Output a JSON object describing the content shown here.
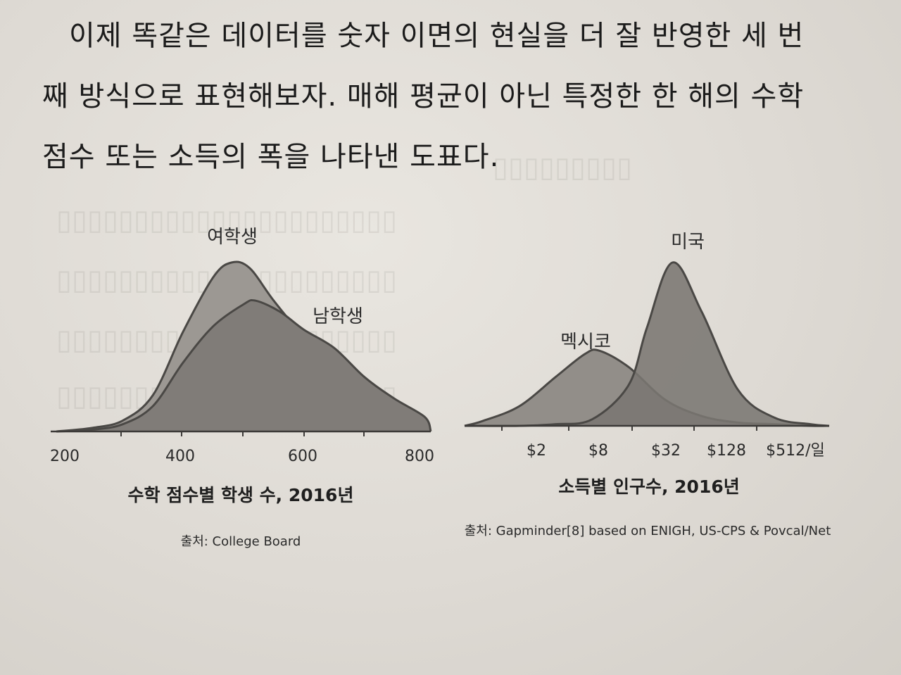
{
  "paragraph": {
    "line1": "이제 똑같은 데이터를 숫자 이면의 현실을 더 잘 반영한 세 번",
    "line2": "째 방식으로 표현해보자. 매해 평균이 아닌 특정한 한 해의 수학",
    "line3": "점수 또는 소득의 폭을 나타낸 도표다."
  },
  "chart_data": [
    {
      "type": "area",
      "series": [
        {
          "name": "여학생",
          "x": [
            190,
            250,
            300,
            350,
            400,
            450,
            480,
            510,
            550,
            600,
            650,
            700,
            750,
            800,
            810
          ],
          "values": [
            0,
            2,
            6,
            20,
            55,
            85,
            93,
            90,
            72,
            52,
            35,
            22,
            12,
            6,
            0
          ]
        },
        {
          "name": "남학생",
          "x": [
            190,
            250,
            300,
            350,
            400,
            450,
            500,
            520,
            560,
            600,
            650,
            700,
            750,
            800,
            810
          ],
          "values": [
            0,
            1,
            4,
            14,
            38,
            58,
            70,
            72,
            66,
            56,
            46,
            30,
            18,
            8,
            0
          ]
        }
      ],
      "xticks": [
        "200",
        "400",
        "600",
        "800"
      ],
      "title": "수학 점수별 학생 수, 2016년",
      "source": "출처: College Board"
    },
    {
      "type": "area",
      "series": [
        {
          "name": "멕시코",
          "x": [
            -0.5,
            0,
            1,
            2,
            2.8,
            3.2,
            4,
            5,
            6,
            7,
            8,
            9,
            9.5
          ],
          "values": [
            0,
            3,
            12,
            30,
            44,
            46,
            36,
            16,
            6,
            2,
            1,
            0,
            0
          ]
        },
        {
          "name": "미국",
          "x": [
            -0.5,
            1,
            2,
            3,
            4,
            4.5,
            5.2,
            6,
            7,
            8,
            9,
            9.5
          ],
          "values": [
            0,
            0,
            1,
            4,
            25,
            60,
            100,
            70,
            22,
            5,
            1,
            0
          ]
        }
      ],
      "xticks": [
        "$2",
        "$8",
        "$32",
        "$128",
        "$512/일"
      ],
      "title": "소득별 인구수, 2016년",
      "source": "출처: Gapminder[8] based on ENIGH, US-CPS & Povcal/Net"
    }
  ]
}
